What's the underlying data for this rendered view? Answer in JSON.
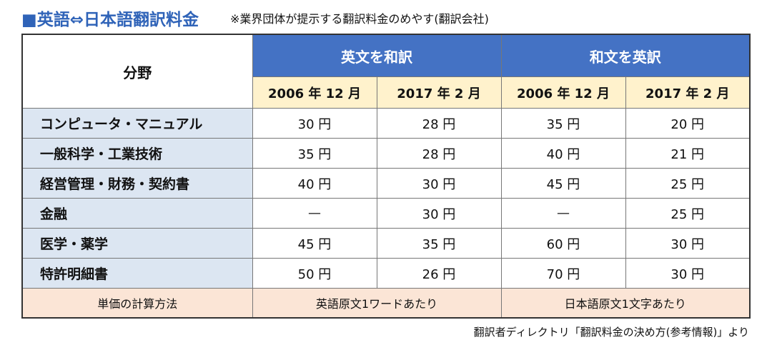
{
  "header": {
    "title": "■英語⇔日本語翻訳料金",
    "subtitle": "※業界団体が提示する翻訳料金のめやす(翻訳会社)"
  },
  "table": {
    "field_header": "分野",
    "groups": [
      "英文を和訳",
      "和文を英訳"
    ],
    "periods": [
      "2006 年 12 月",
      "2017 年 2 月",
      "2006 年 12 月",
      "2017 年 2 月"
    ],
    "rows": [
      [
        "コンピュータ・マニュアル",
        "30 円",
        "28 円",
        "35 円",
        "20 円"
      ],
      [
        "一般科学・工業技術",
        "35 円",
        "28 円",
        "40 円",
        "21 円"
      ],
      [
        "経営管理・財務・契約書",
        "40 円",
        "30 円",
        "45 円",
        "25 円"
      ],
      [
        "金融",
        "—",
        "30 円",
        "—",
        "25 円"
      ],
      [
        "医学・薬学",
        "45 円",
        "35 円",
        "60 円",
        "30 円"
      ],
      [
        "特許明細書",
        "50 円",
        "26 円",
        "70 円",
        "30 円"
      ]
    ],
    "unit_row": [
      "単価の計算方法",
      "英語原文1ワードあたり",
      "日本語原文1文字あたり"
    ]
  },
  "source": "翻訳者ディレクトリ「翻訳料金の決め方(参考情報)」より"
}
